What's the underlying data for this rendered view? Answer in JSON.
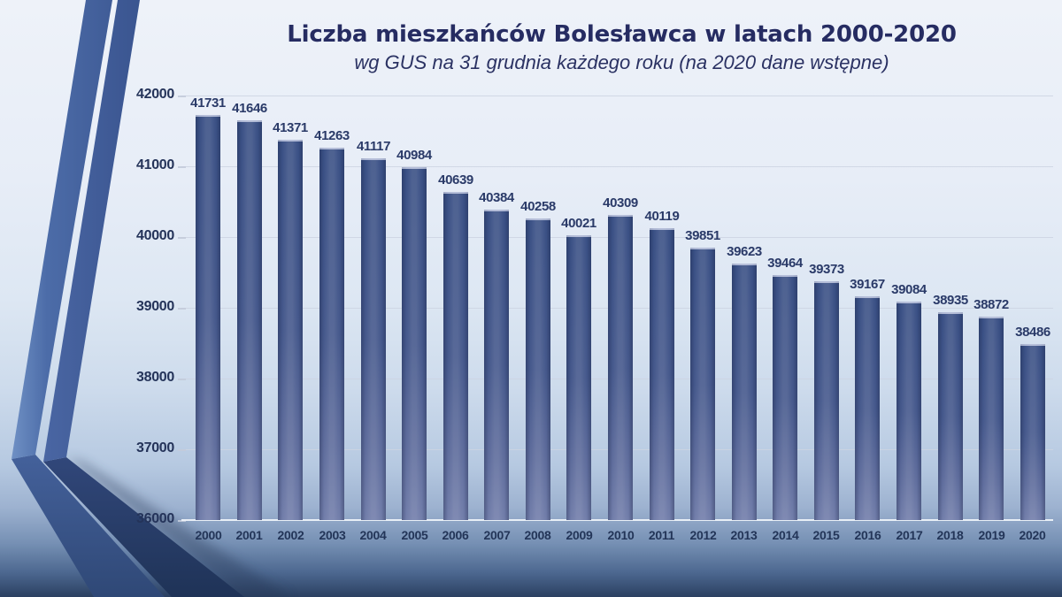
{
  "slide": {
    "accent_colors": {
      "ribbon_light": "#6f90c4",
      "ribbon_mid": "#44619b",
      "ribbon_dark": "#1f3357",
      "background_top": "#eef2f9",
      "background_bottom": "#2b4061",
      "text_navy": "#262c62"
    }
  },
  "chart_data": {
    "type": "bar",
    "title": "Liczba mieszkańców  Bolesławca w latach 2000-2020",
    "subtitle": "wg GUS na 31 grudnia każdego roku (na 2020 dane wstępne)",
    "categories": [
      "2000",
      "2001",
      "2002",
      "2003",
      "2004",
      "2005",
      "2006",
      "2007",
      "2008",
      "2009",
      "2010",
      "2011",
      "2012",
      "2013",
      "2014",
      "2015",
      "2016",
      "2017",
      "2018",
      "2019",
      "2020"
    ],
    "values": [
      41731,
      41646,
      41371,
      41263,
      41117,
      40984,
      40639,
      40384,
      40258,
      40021,
      40309,
      40119,
      39851,
      39623,
      39464,
      39373,
      39167,
      39084,
      38935,
      38872,
      38486
    ],
    "ytick_labels": [
      "36000",
      "37000",
      "38000",
      "39000",
      "40000",
      "41000",
      "42000"
    ],
    "ylim": [
      36000,
      42000
    ],
    "ytick_step": 1000,
    "xlabel": "",
    "ylabel": "",
    "grid": true,
    "legend": "none",
    "bar_color": "#45588c",
    "gridline_color": "#ccd4e2",
    "value_label_color": "#2a3a68"
  }
}
